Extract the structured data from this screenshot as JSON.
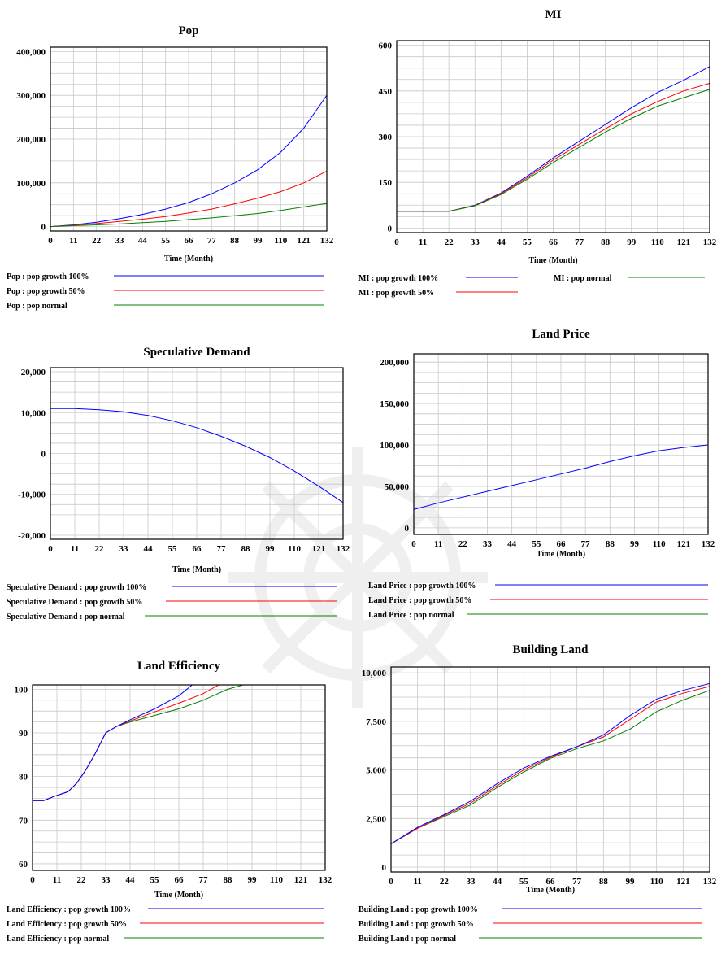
{
  "colors": {
    "blue": "#0000ff",
    "red": "#ff0000",
    "green": "#008000"
  },
  "chart_data": [
    {
      "id": "pop",
      "type": "line",
      "title": "Pop",
      "xlabel": "Time (Month)",
      "x_ticks": [
        "0",
        "11",
        "22",
        "33",
        "44",
        "55",
        "66",
        "77",
        "88",
        "99",
        "110",
        "121",
        "132"
      ],
      "y_ticks": [
        {
          "v": 0,
          "label": "0"
        },
        {
          "v": 100000,
          "label": "100,000"
        },
        {
          "v": 200000,
          "label": "200,000"
        },
        {
          "v": 300000,
          "label": "300,000"
        },
        {
          "v": 400000,
          "label": "400,000"
        }
      ],
      "xlim": [
        0,
        132
      ],
      "ylim": [
        -10000,
        410000
      ],
      "legend": [
        {
          "text": "Pop : pop growth 100%",
          "color": "#0000ff"
        },
        {
          "text": "Pop : pop growth 50%",
          "color": "#ff0000"
        },
        {
          "text": "Pop : pop normal",
          "color": "#008000"
        }
      ],
      "series": [
        {
          "color": "#0000ff",
          "x": [
            0,
            11,
            22,
            33,
            44,
            55,
            66,
            77,
            88,
            99,
            110,
            121,
            132
          ],
          "y": [
            0,
            4000,
            10000,
            18000,
            28000,
            40000,
            55000,
            75000,
            100000,
            130000,
            170000,
            225000,
            300000
          ]
        },
        {
          "color": "#ff0000",
          "x": [
            0,
            11,
            22,
            33,
            44,
            55,
            66,
            77,
            88,
            99,
            110,
            121,
            132
          ],
          "y": [
            0,
            3000,
            7000,
            12000,
            17000,
            23000,
            31000,
            40000,
            52000,
            65000,
            80000,
            100000,
            127000
          ]
        },
        {
          "color": "#008000",
          "x": [
            0,
            11,
            22,
            33,
            44,
            55,
            66,
            77,
            88,
            99,
            110,
            121,
            132
          ],
          "y": [
            0,
            2000,
            4000,
            6000,
            9000,
            12000,
            16000,
            20000,
            25000,
            30000,
            37000,
            45000,
            53000
          ]
        }
      ]
    },
    {
      "id": "mi",
      "type": "line",
      "title": "MI",
      "xlabel": "Time (Month)",
      "x_ticks": [
        "0",
        "11",
        "22",
        "33",
        "44",
        "55",
        "66",
        "77",
        "88",
        "99",
        "110",
        "121",
        "132"
      ],
      "y_ticks": [
        {
          "v": 0,
          "label": "0"
        },
        {
          "v": 150,
          "label": "150"
        },
        {
          "v": 300,
          "label": "300"
        },
        {
          "v": 450,
          "label": "450"
        },
        {
          "v": 600,
          "label": "600"
        }
      ],
      "xlim": [
        0,
        132
      ],
      "ylim": [
        -15,
        615
      ],
      "legend": [
        {
          "text": "MI : pop growth 100%",
          "color": "#0000ff"
        },
        {
          "text": "MI : pop normal",
          "color": "#008000"
        },
        {
          "text": "MI : pop growth 50%",
          "color": "#ff0000"
        }
      ],
      "series": [
        {
          "color": "#0000ff",
          "x": [
            0,
            11,
            22,
            33,
            44,
            55,
            66,
            77,
            88,
            99,
            110,
            121,
            132
          ],
          "y": [
            55,
            55,
            55,
            75,
            115,
            170,
            230,
            285,
            340,
            395,
            445,
            485,
            530
          ]
        },
        {
          "color": "#ff0000",
          "x": [
            0,
            11,
            22,
            33,
            44,
            55,
            66,
            77,
            88,
            99,
            110,
            121,
            132
          ],
          "y": [
            55,
            55,
            55,
            74,
            113,
            165,
            223,
            275,
            326,
            375,
            415,
            450,
            475
          ]
        },
        {
          "color": "#008000",
          "x": [
            0,
            11,
            22,
            33,
            44,
            55,
            66,
            77,
            88,
            99,
            110,
            121,
            132
          ],
          "y": [
            55,
            55,
            55,
            73,
            110,
            160,
            215,
            265,
            315,
            360,
            400,
            428,
            455
          ]
        }
      ]
    },
    {
      "id": "speculative",
      "type": "line",
      "title": "Speculative Demand",
      "xlabel": "Time (Month)",
      "x_ticks": [
        "0",
        "11",
        "22",
        "33",
        "44",
        "55",
        "66",
        "77",
        "88",
        "99",
        "110",
        "121",
        "132"
      ],
      "y_ticks": [
        {
          "v": -20000,
          "label": "-20,000"
        },
        {
          "v": -10000,
          "label": "-10,000"
        },
        {
          "v": 0,
          "label": "0"
        },
        {
          "v": 10000,
          "label": "10,000"
        },
        {
          "v": 20000,
          "label": "20,000"
        }
      ],
      "xlim": [
        0,
        132
      ],
      "ylim": [
        -21000,
        21000
      ],
      "legend": [
        {
          "text": "Speculative Demand : pop growth 100%",
          "color": "#0000ff"
        },
        {
          "text": "Speculative Demand : pop growth 50%",
          "color": "#ff0000"
        },
        {
          "text": "Speculative Demand : pop normal",
          "color": "#008000"
        }
      ],
      "series": [
        {
          "color": "#0000ff",
          "x": [
            0,
            11,
            22,
            33,
            44,
            55,
            66,
            77,
            88,
            99,
            110,
            121,
            132
          ],
          "y": [
            11000,
            11000,
            10700,
            10200,
            9300,
            8000,
            6300,
            4200,
            1800,
            -1000,
            -4300,
            -8000,
            -12000
          ]
        }
      ]
    },
    {
      "id": "landprice",
      "type": "line",
      "title": "Land Price",
      "xlabel": "Time (Month)",
      "x_ticks": [
        "0",
        "11",
        "22",
        "33",
        "44",
        "55",
        "66",
        "77",
        "88",
        "99",
        "110",
        "121",
        "132"
      ],
      "y_ticks": [
        {
          "v": 0,
          "label": "0"
        },
        {
          "v": 50000,
          "label": "50,000"
        },
        {
          "v": 100000,
          "label": "100,000"
        },
        {
          "v": 150000,
          "label": "150,000"
        },
        {
          "v": 200000,
          "label": "200,000"
        }
      ],
      "xlim": [
        0,
        132
      ],
      "ylim": [
        -8000,
        210000
      ],
      "legend": [
        {
          "text": "Land Price : pop growth 100%",
          "color": "#0000ff"
        },
        {
          "text": "Land Price : pop growth 50%",
          "color": "#ff0000"
        },
        {
          "text": "Land Price : pop normal",
          "color": "#008000"
        }
      ],
      "series": [
        {
          "color": "#0000ff",
          "x": [
            0,
            11,
            22,
            33,
            44,
            55,
            66,
            77,
            88,
            99,
            110,
            121,
            132
          ],
          "y": [
            22000,
            30000,
            37000,
            44000,
            51000,
            58000,
            65000,
            72000,
            80000,
            87000,
            93000,
            97000,
            100000
          ]
        }
      ]
    },
    {
      "id": "landeff",
      "type": "line",
      "title": "Land Efficiency",
      "xlabel": "Time (Month)",
      "x_ticks": [
        "0",
        "11",
        "22",
        "33",
        "44",
        "55",
        "66",
        "77",
        "88",
        "99",
        "110",
        "121",
        "132"
      ],
      "y_ticks": [
        {
          "v": 60,
          "label": "60"
        },
        {
          "v": 70,
          "label": "70"
        },
        {
          "v": 80,
          "label": "80"
        },
        {
          "v": 90,
          "label": "90"
        },
        {
          "v": 100,
          "label": "100"
        }
      ],
      "xlim": [
        0,
        132
      ],
      "ylim": [
        58.5,
        101
      ],
      "legend": [
        {
          "text": "Land Efficiency : pop growth 100%",
          "color": "#0000ff"
        },
        {
          "text": "Land Efficiency : pop growth 50%",
          "color": "#ff0000"
        },
        {
          "text": "Land Efficiency : pop normal",
          "color": "#008000"
        }
      ],
      "series": [
        {
          "color": "#008000",
          "x": [
            0,
            5,
            10,
            16,
            20,
            24,
            28,
            33,
            38,
            44,
            55,
            66,
            77,
            88,
            95,
            99,
            132
          ],
          "y": [
            74.5,
            74.5,
            75.5,
            76.5,
            78.5,
            81.5,
            85,
            90,
            91.5,
            92.5,
            94,
            95.5,
            97.5,
            100,
            101,
            101,
            101
          ]
        },
        {
          "color": "#ff0000",
          "x": [
            0,
            5,
            10,
            16,
            20,
            24,
            28,
            33,
            38,
            44,
            55,
            66,
            77,
            84,
            88,
            132
          ],
          "y": [
            74.5,
            74.5,
            75.5,
            76.5,
            78.5,
            81.5,
            85,
            90,
            91.5,
            92.7,
            94.8,
            96.8,
            99,
            101,
            101,
            101
          ]
        },
        {
          "color": "#0000ff",
          "x": [
            0,
            5,
            10,
            16,
            20,
            24,
            28,
            33,
            38,
            44,
            55,
            66,
            72,
            132
          ],
          "y": [
            74.5,
            74.5,
            75.5,
            76.5,
            78.5,
            81.5,
            85,
            90,
            91.5,
            93,
            95.5,
            98.5,
            101,
            101
          ]
        }
      ]
    },
    {
      "id": "buildingland",
      "type": "line",
      "title": "Building Land",
      "xlabel": "Time (Month)",
      "x_ticks": [
        "0",
        "11",
        "22",
        "33",
        "44",
        "55",
        "66",
        "77",
        "88",
        "99",
        "110",
        "121",
        "132"
      ],
      "y_ticks": [
        {
          "v": 0,
          "label": "0"
        },
        {
          "v": 2500,
          "label": "2,500"
        },
        {
          "v": 5000,
          "label": "5,000"
        },
        {
          "v": 7500,
          "label": "7,500"
        },
        {
          "v": 10000,
          "label": "10,000"
        }
      ],
      "xlim": [
        0,
        132
      ],
      "ylim": [
        -250,
        10300
      ],
      "legend": [
        {
          "text": "Building Land : pop growth 100%",
          "color": "#0000ff"
        },
        {
          "text": "Building Land : pop growth 50%",
          "color": "#ff0000"
        },
        {
          "text": "Building Land : pop normal",
          "color": "#008000"
        }
      ],
      "series": [
        {
          "color": "#008000",
          "x": [
            0,
            11,
            22,
            33,
            44,
            55,
            66,
            77,
            88,
            99,
            110,
            121,
            132
          ],
          "y": [
            1200,
            2000,
            2600,
            3200,
            4100,
            4900,
            5600,
            6100,
            6500,
            7100,
            8000,
            8600,
            9100
          ]
        },
        {
          "color": "#ff0000",
          "x": [
            0,
            11,
            22,
            33,
            44,
            55,
            66,
            77,
            88,
            99,
            110,
            121,
            132
          ],
          "y": [
            1200,
            2000,
            2650,
            3300,
            4200,
            5000,
            5650,
            6200,
            6700,
            7600,
            8500,
            8950,
            9300
          ]
        },
        {
          "color": "#0000ff",
          "x": [
            0,
            11,
            22,
            33,
            44,
            55,
            66,
            77,
            88,
            99,
            110,
            121,
            132
          ],
          "y": [
            1200,
            2050,
            2700,
            3400,
            4300,
            5100,
            5700,
            6200,
            6800,
            7800,
            8650,
            9100,
            9450
          ]
        }
      ]
    }
  ]
}
